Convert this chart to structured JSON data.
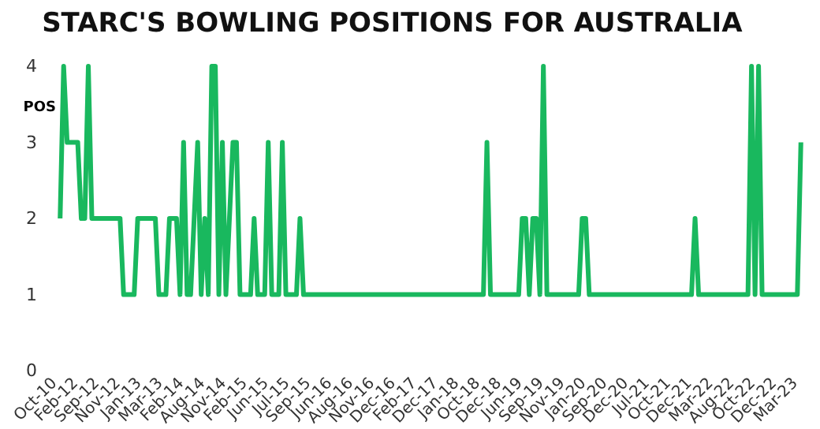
{
  "chart_data": {
    "type": "line",
    "title": "STARC'S BOWLING POSITIONS FOR AUSTRALIA",
    "ylabel": "POS",
    "categories": [
      "Oct-10",
      null,
      null,
      null,
      null,
      null,
      "Feb-12",
      null,
      null,
      null,
      null,
      null,
      "Sep-12",
      null,
      null,
      null,
      null,
      null,
      "Nov-12",
      null,
      null,
      null,
      null,
      null,
      "Jan-13",
      null,
      null,
      null,
      null,
      null,
      "Mar-13",
      null,
      null,
      null,
      null,
      null,
      "Feb-14",
      null,
      null,
      null,
      null,
      null,
      "Aug-14",
      null,
      null,
      null,
      null,
      null,
      "Nov-14",
      null,
      null,
      null,
      null,
      null,
      "Feb-15",
      null,
      null,
      null,
      null,
      null,
      "Jun-15",
      null,
      null,
      null,
      null,
      null,
      "Jul-15",
      null,
      null,
      null,
      null,
      null,
      "Sep-15",
      null,
      null,
      null,
      null,
      null,
      "Jun-16",
      null,
      null,
      null,
      null,
      null,
      "Aug-16",
      null,
      null,
      null,
      null,
      null,
      "Nov-16",
      null,
      null,
      null,
      null,
      null,
      "Dec-16",
      null,
      null,
      null,
      null,
      null,
      "Feb-17",
      null,
      null,
      null,
      null,
      null,
      "Dec-17",
      null,
      null,
      null,
      null,
      null,
      "Jan-18",
      null,
      null,
      null,
      null,
      null,
      "Oct-18",
      null,
      null,
      null,
      null,
      null,
      "Dec-18",
      null,
      null,
      null,
      null,
      null,
      "Jun-19",
      null,
      null,
      null,
      null,
      null,
      "Sep-19",
      null,
      null,
      null,
      null,
      null,
      "Nov-19",
      null,
      null,
      null,
      null,
      null,
      "Jan-20",
      null,
      null,
      null,
      null,
      null,
      "Sep-20",
      null,
      null,
      null,
      null,
      null,
      "Dec-20",
      null,
      null,
      null,
      null,
      null,
      "Jul-21",
      null,
      null,
      null,
      null,
      null,
      "Oct-21",
      null,
      null,
      null,
      null,
      null,
      "Dec-21",
      null,
      null,
      null,
      null,
      null,
      "Mar-22",
      null,
      null,
      null,
      null,
      null,
      "Aug-22",
      null,
      null,
      null,
      null,
      null,
      "Oct-22",
      null,
      null,
      null,
      null,
      null,
      "Dec-22",
      null,
      null,
      null,
      null,
      null,
      "Mar-23"
    ],
    "series": [
      {
        "color": "#19b85e",
        "values": [
          2,
          4,
          3,
          3,
          3,
          3,
          2,
          2,
          4,
          2,
          2,
          2,
          2,
          2,
          2,
          2,
          2,
          2,
          1,
          1,
          1,
          1,
          2,
          2,
          2,
          2,
          2,
          2,
          1,
          1,
          1,
          2,
          2,
          2,
          1,
          3,
          1,
          1,
          2,
          3,
          1,
          2,
          1,
          4,
          4,
          1,
          3,
          1,
          2,
          3,
          3,
          1,
          1,
          1,
          1,
          2,
          1,
          1,
          1,
          3,
          1,
          1,
          1,
          3,
          1,
          1,
          1,
          1,
          2,
          1,
          1,
          1,
          1,
          1,
          1,
          1,
          1,
          1,
          1,
          1,
          1,
          1,
          1,
          1,
          1,
          1,
          1,
          1,
          1,
          1,
          1,
          1,
          1,
          1,
          1,
          1,
          1,
          1,
          1,
          1,
          1,
          1,
          1,
          1,
          1,
          1,
          1,
          1,
          1,
          1,
          1,
          1,
          1,
          1,
          1,
          1,
          1,
          1,
          1,
          1,
          1,
          3,
          1,
          1,
          1,
          1,
          1,
          1,
          1,
          1,
          1,
          2,
          2,
          1,
          2,
          2,
          1,
          4,
          1,
          1,
          1,
          1,
          1,
          1,
          1,
          1,
          1,
          1,
          2,
          2,
          1,
          1,
          1,
          1,
          1,
          1,
          1,
          1,
          1,
          1,
          1,
          1,
          1,
          1,
          1,
          1,
          1,
          1,
          1,
          1,
          1,
          1,
          1,
          1,
          1,
          1,
          1,
          1,
          1,
          1,
          2,
          1,
          1,
          1,
          1,
          1,
          1,
          1,
          1,
          1,
          1,
          1,
          1,
          1,
          1,
          1,
          4,
          1,
          4,
          1,
          1,
          1,
          1,
          1,
          1,
          1,
          1,
          1,
          1,
          1,
          3
        ]
      }
    ],
    "ylim": [
      0,
      4
    ],
    "yticks": [
      0,
      1,
      2,
      3,
      4
    ],
    "grid": false,
    "legend": false,
    "marker": "none",
    "line_style": "solid"
  }
}
